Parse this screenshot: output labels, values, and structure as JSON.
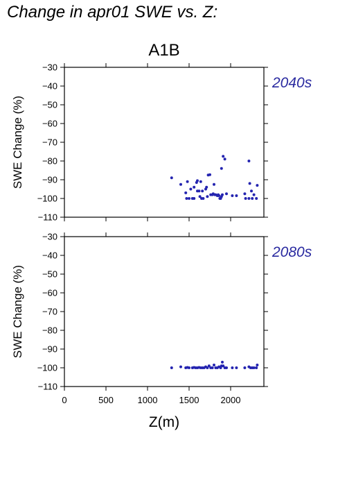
{
  "title": "Change in apr01 SWE vs. Z:",
  "scenario": "A1B",
  "colors": {
    "points": "#2424b0",
    "period_label": "#2a2aa0",
    "axes": "#000000"
  },
  "chart_data": [
    {
      "type": "scatter",
      "period": "2040s",
      "xlabel": "Z(m)",
      "ylabel": "SWE Change (%)",
      "xlim": [
        0,
        2400
      ],
      "ylim": [
        -110,
        -30
      ],
      "yticks": [
        -30,
        -40,
        -50,
        -60,
        -70,
        -80,
        -90,
        -100,
        -110
      ],
      "xticks": [
        0,
        500,
        1000,
        1500,
        2000
      ],
      "grid": false,
      "points": [
        [
          1290,
          -89
        ],
        [
          1400,
          -92.5
        ],
        [
          1460,
          -97
        ],
        [
          1480,
          -91
        ],
        [
          1470,
          -100
        ],
        [
          1500,
          -100
        ],
        [
          1540,
          -100
        ],
        [
          1560,
          -100
        ],
        [
          1520,
          -95
        ],
        [
          1560,
          -94
        ],
        [
          1590,
          -91.5
        ],
        [
          1600,
          -90.5
        ],
        [
          1600,
          -96
        ],
        [
          1620,
          -96
        ],
        [
          1630,
          -99
        ],
        [
          1640,
          -91
        ],
        [
          1650,
          -100
        ],
        [
          1670,
          -100
        ],
        [
          1660,
          -96
        ],
        [
          1700,
          -95
        ],
        [
          1710,
          -94
        ],
        [
          1720,
          -99
        ],
        [
          1730,
          -87.5
        ],
        [
          1750,
          -87.3
        ],
        [
          1760,
          -98
        ],
        [
          1780,
          -98
        ],
        [
          1790,
          -97.5
        ],
        [
          1800,
          -92.5
        ],
        [
          1810,
          -98
        ],
        [
          1820,
          -98
        ],
        [
          1840,
          -98.5
        ],
        [
          1850,
          -98
        ],
        [
          1860,
          -98.5
        ],
        [
          1870,
          -100
        ],
        [
          1880,
          -100
        ],
        [
          1890,
          -99
        ],
        [
          1890,
          -84
        ],
        [
          1900,
          -98
        ],
        [
          1910,
          -77.5
        ],
        [
          1930,
          -79
        ],
        [
          1950,
          -97.5
        ],
        [
          2020,
          -98.5
        ],
        [
          2070,
          -98.5
        ],
        [
          2170,
          -97.5
        ],
        [
          2180,
          -100
        ],
        [
          2220,
          -100
        ],
        [
          2220,
          -80
        ],
        [
          2230,
          -92
        ],
        [
          2250,
          -96
        ],
        [
          2260,
          -100
        ],
        [
          2280,
          -98
        ],
        [
          2310,
          -100
        ],
        [
          2320,
          -93
        ]
      ]
    },
    {
      "type": "scatter",
      "period": "2080s",
      "xlabel": "Z(m)",
      "ylabel": "SWE Change (%)",
      "xlim": [
        0,
        2400
      ],
      "ylim": [
        -110,
        -30
      ],
      "yticks": [
        -30,
        -40,
        -50,
        -60,
        -70,
        -80,
        -90,
        -100,
        -110
      ],
      "xticks": [
        0,
        500,
        1000,
        1500,
        2000
      ],
      "grid": false,
      "points": [
        [
          1290,
          -100
        ],
        [
          1400,
          -99.5
        ],
        [
          1460,
          -100
        ],
        [
          1480,
          -99.8
        ],
        [
          1500,
          -100
        ],
        [
          1540,
          -100
        ],
        [
          1560,
          -99.8
        ],
        [
          1580,
          -100
        ],
        [
          1600,
          -100
        ],
        [
          1620,
          -99.8
        ],
        [
          1640,
          -100
        ],
        [
          1660,
          -100
        ],
        [
          1680,
          -100
        ],
        [
          1700,
          -99.5
        ],
        [
          1720,
          -100
        ],
        [
          1740,
          -99
        ],
        [
          1760,
          -100
        ],
        [
          1780,
          -100
        ],
        [
          1800,
          -98.5
        ],
        [
          1820,
          -100
        ],
        [
          1840,
          -100
        ],
        [
          1860,
          -99.5
        ],
        [
          1880,
          -100
        ],
        [
          1890,
          -99
        ],
        [
          1900,
          -97
        ],
        [
          1910,
          -99
        ],
        [
          1930,
          -100
        ],
        [
          1950,
          -100
        ],
        [
          2020,
          -100
        ],
        [
          2070,
          -100
        ],
        [
          2170,
          -100
        ],
        [
          2220,
          -99.5
        ],
        [
          2240,
          -100
        ],
        [
          2260,
          -100
        ],
        [
          2280,
          -100
        ],
        [
          2310,
          -100
        ],
        [
          2320,
          -98.5
        ]
      ]
    }
  ]
}
